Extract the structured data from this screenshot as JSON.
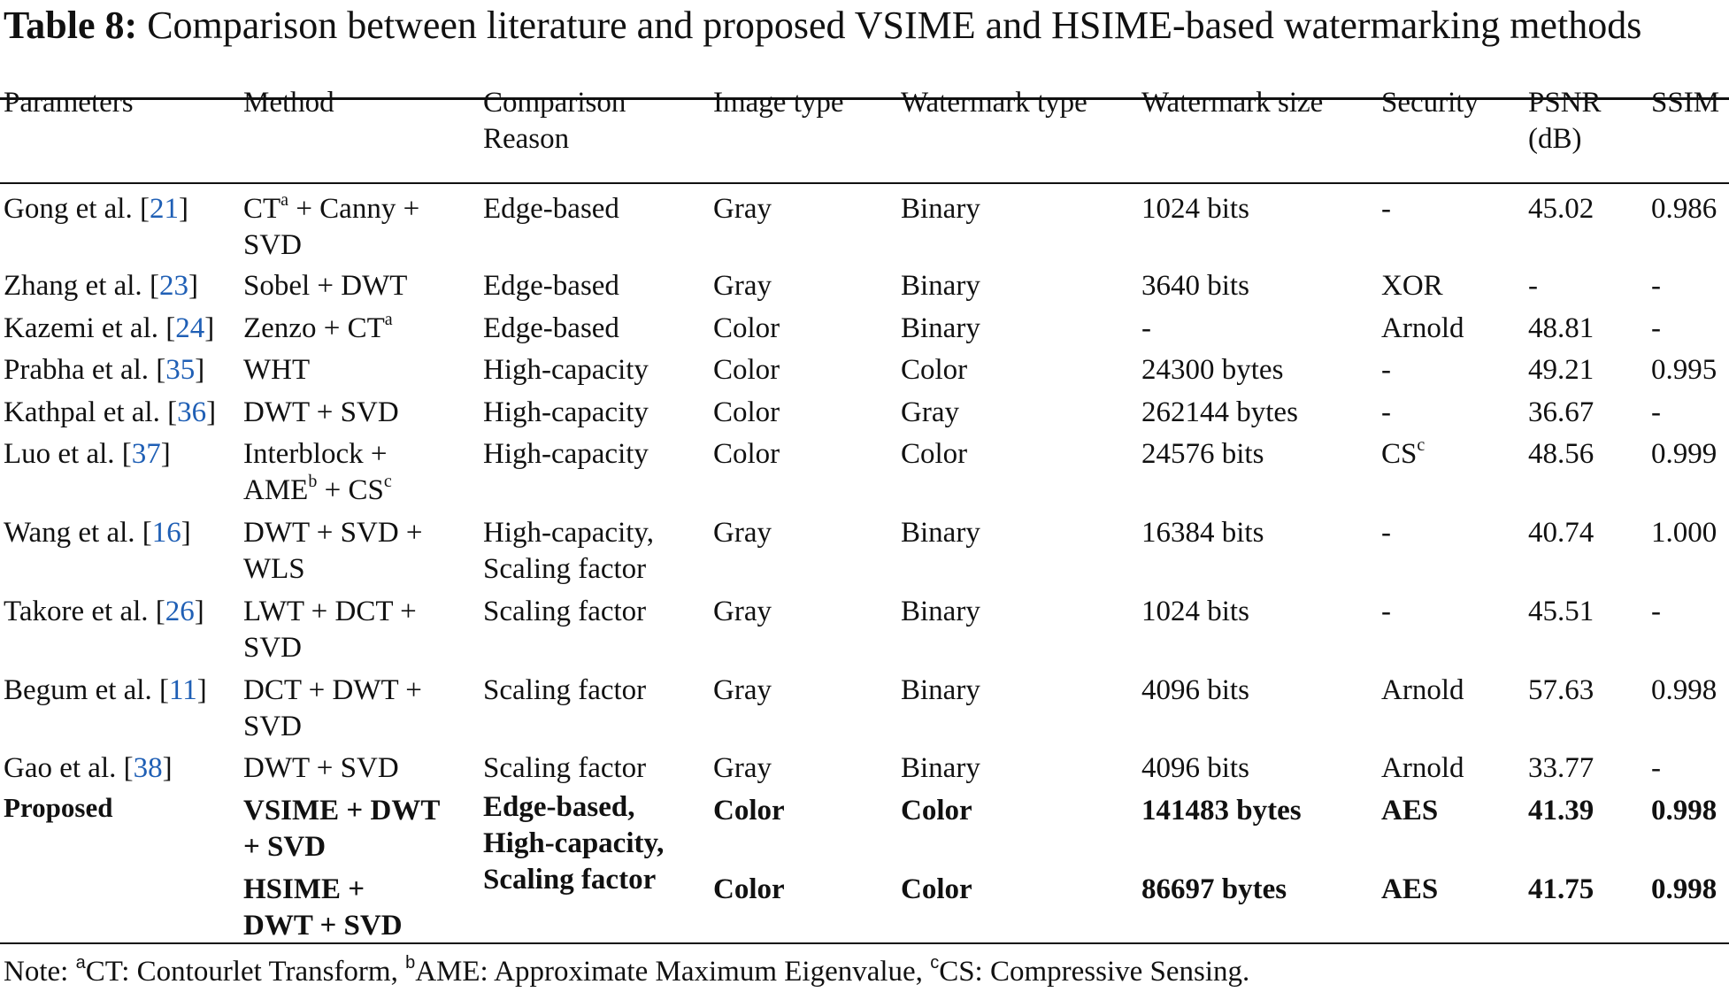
{
  "caption": {
    "label": "Table 8:",
    "text": "Comparison between literature and proposed VSIME and HSIME-based watermarking methods"
  },
  "headers": {
    "parameters": "Parameters",
    "method": "Method",
    "reason_1": "Comparison",
    "reason_2": "Reason",
    "image_type": "Image type",
    "watermark_type": "Watermark type",
    "watermark_size": "Watermark size",
    "security": "Security",
    "psnr_1": "PSNR",
    "psnr_2": "(dB)",
    "ssim": "SSIM"
  },
  "rows": [
    {
      "author": "Gong et al.",
      "ref": "21",
      "method": [
        "CT",
        "a",
        " + Canny +"
      ],
      "method_2": "SVD",
      "reason": "Edge-based",
      "image_type": "Gray",
      "watermark_type": "Binary",
      "size": "1024 bits",
      "security": "-",
      "psnr": "45.02",
      "ssim": "0.986"
    },
    {
      "author": "Zhang et al.",
      "ref": "23",
      "method": "Sobel + DWT",
      "reason": "Edge-based",
      "image_type": "Gray",
      "watermark_type": "Binary",
      "size": "3640 bits",
      "security": "XOR",
      "psnr": "-",
      "ssim": "-"
    },
    {
      "author": "Kazemi et al.",
      "ref": "24",
      "method": [
        "Zenzo + CT",
        "a"
      ],
      "reason": "Edge-based",
      "image_type": "Color",
      "watermark_type": "Binary",
      "size": "-",
      "security": "Arnold",
      "psnr": "48.81",
      "ssim": "-"
    },
    {
      "author": "Prabha et al.",
      "ref": "35",
      "method": "WHT",
      "reason": "High-capacity",
      "image_type": "Color",
      "watermark_type": "Color",
      "size": "24300 bytes",
      "security": "-",
      "psnr": "49.21",
      "ssim": "0.995"
    },
    {
      "author": "Kathpal et al.",
      "ref": "36",
      "method": "DWT + SVD",
      "reason": "High-capacity",
      "image_type": "Color",
      "watermark_type": "Gray",
      "size": "262144 bytes",
      "security": "-",
      "psnr": "36.67",
      "ssim": "-"
    },
    {
      "author": "Luo et al.",
      "ref": "37",
      "method": "Interblock +",
      "method_2": [
        "AME",
        "b",
        " + CS",
        "c"
      ],
      "reason": "High-capacity",
      "image_type": "Color",
      "watermark_type": "Color",
      "size": "24576 bits",
      "security": [
        "CS",
        "c"
      ],
      "psnr": "48.56",
      "ssim": "0.999"
    },
    {
      "author": "Wang et al.",
      "ref": "16",
      "method": "DWT + SVD +",
      "method_2": "WLS",
      "reason": "High-capacity,",
      "reason_2": "Scaling factor",
      "image_type": "Gray",
      "watermark_type": "Binary",
      "size": "16384 bits",
      "security": "-",
      "psnr": "40.74",
      "ssim": "1.000"
    },
    {
      "author": "Takore et al.",
      "ref": "26",
      "method": "LWT + DCT +",
      "method_2": "SVD",
      "reason": "Scaling factor",
      "image_type": "Gray",
      "watermark_type": "Binary",
      "size": "1024 bits",
      "security": "-",
      "psnr": "45.51",
      "ssim": "-"
    },
    {
      "author": "Begum et al.",
      "ref": "11",
      "method": "DCT + DWT +",
      "method_2": "SVD",
      "reason": "Scaling factor",
      "image_type": "Gray",
      "watermark_type": "Binary",
      "size": "4096 bits",
      "security": "Arnold",
      "psnr": "57.63",
      "ssim": "0.998"
    },
    {
      "author": "Gao et al.",
      "ref": "38",
      "method": "DWT + SVD",
      "reason": "Scaling factor",
      "image_type": "Gray",
      "watermark_type": "Binary",
      "size": "4096 bits",
      "security": "Arnold",
      "psnr": "33.77",
      "ssim": "-"
    }
  ],
  "proposed": {
    "label": "Proposed",
    "reason": [
      "Edge-based,",
      "High-capacity,",
      "Scaling factor"
    ],
    "variants": [
      {
        "method": "VSIME + DWT",
        "method_2": "+ SVD",
        "image_type": "Color",
        "watermark_type": "Color",
        "size": "141483 bytes",
        "security": "AES",
        "psnr": "41.39",
        "ssim": "0.998"
      },
      {
        "method": "HSIME +",
        "method_2": "DWT + SVD",
        "image_type": "Color",
        "watermark_type": "Color",
        "size": "86697 bytes",
        "security": "AES",
        "psnr": "41.75",
        "ssim": "0.998"
      }
    ]
  },
  "note": {
    "prefix": "Note: ",
    "a_mark": "a",
    "a_text": "CT: Contourlet Transform, ",
    "b_mark": "b",
    "b_text": "AME: Approximate Maximum Eigenvalue, ",
    "c_mark": "c",
    "c_text": "CS: Compressive Sensing."
  }
}
